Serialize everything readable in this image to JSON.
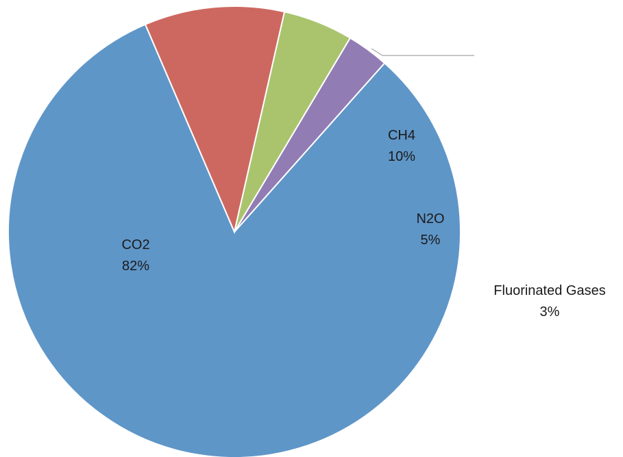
{
  "chart_data": {
    "type": "pie",
    "slices": [
      {
        "name": "CO2",
        "value": 82,
        "label": "82%",
        "color": "#5f96c8"
      },
      {
        "name": "CH4",
        "value": 10,
        "label": "10%",
        "color": "#cd6860"
      },
      {
        "name": "N2O",
        "value": 5,
        "label": "5%",
        "color": "#aac46e"
      },
      {
        "name": "Fluorinated Gases",
        "value": 3,
        "label": "3%",
        "color": "#927cb4"
      }
    ],
    "start_angle_deg": -48.4,
    "direction": "clockwise",
    "legend": "none"
  }
}
